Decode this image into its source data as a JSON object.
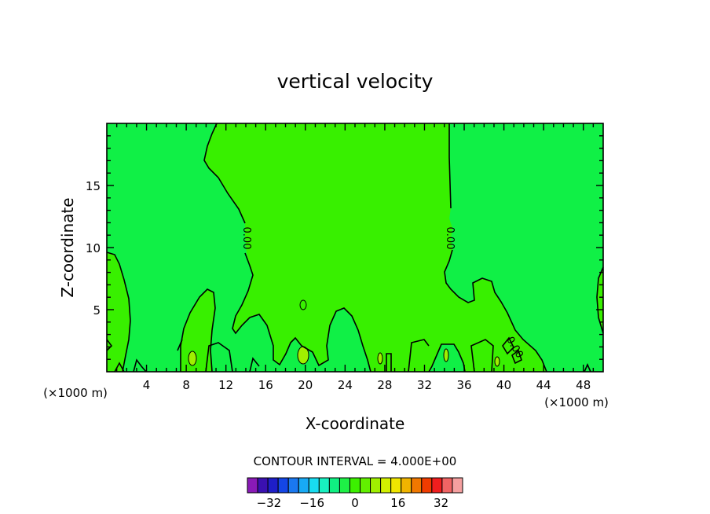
{
  "chart_data": {
    "type": "contour",
    "title": "vertical velocity",
    "xlabel": "X-coordinate",
    "ylabel": "Z-coordinate",
    "x_unit_label": "(×1000 m)",
    "y_unit_label": "(×1000 m)",
    "xlim": [
      0,
      50
    ],
    "ylim": [
      0,
      20
    ],
    "x_ticks": [
      4,
      8,
      12,
      16,
      20,
      24,
      28,
      32,
      36,
      40,
      44,
      48
    ],
    "y_ticks": [
      5,
      10,
      15
    ],
    "grid": false,
    "contour_interval_label": "CONTOUR INTERVAL = 4.000E+00",
    "contour_labels": [
      "0.00",
      "0.00",
      "0.00"
    ],
    "colorbar": {
      "levels": [
        -36,
        -32,
        -28,
        -24,
        -20,
        -16,
        -12,
        -8,
        -4,
        0,
        4,
        8,
        12,
        16,
        20,
        24,
        28,
        32,
        36
      ],
      "tick_labels": [
        "-32",
        "-16",
        "0",
        "16",
        "32"
      ],
      "tick_values": [
        -32,
        -16,
        0,
        16,
        32
      ],
      "colors": [
        "#8a1ab7",
        "#3a10b0",
        "#1e1ec8",
        "#1446e6",
        "#1a78f0",
        "#18aaf5",
        "#18dcf0",
        "#18f0c0",
        "#10f082",
        "#1ef046",
        "#3cf000",
        "#62f000",
        "#a0f000",
        "#d2f000",
        "#f0e600",
        "#f0b400",
        "#f07800",
        "#f03c00",
        "#f01e1e",
        "#f06464",
        "#f5a0a0"
      ]
    },
    "regions": [
      {
        "level_color": "#1ef046",
        "description": "background band 0 to -4"
      },
      {
        "level_color": "#3cf000",
        "description": "central and right upward region 0 to 4"
      },
      {
        "level_color": "#a0f000",
        "description": "small positive cells near surface"
      }
    ]
  }
}
